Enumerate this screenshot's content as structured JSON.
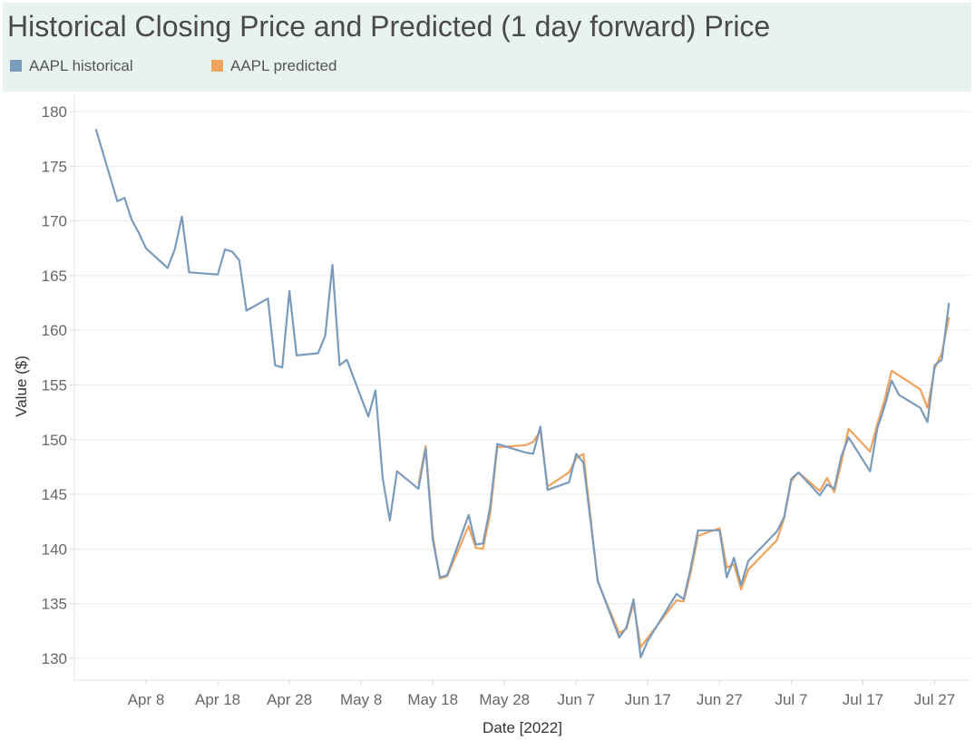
{
  "chart_data": {
    "type": "line",
    "title": "Historical Closing Price and Predicted (1 day forward) Price",
    "xlabel": "Date [2022]",
    "ylabel": "Value ($)",
    "ylim": [
      128,
      181
    ],
    "yticks": [
      130,
      135,
      140,
      145,
      150,
      155,
      160,
      165,
      170,
      175,
      180
    ],
    "xticks": [
      {
        "date": "2022-04-08",
        "label": "Apr 8"
      },
      {
        "date": "2022-04-18",
        "label": "Apr 18"
      },
      {
        "date": "2022-04-28",
        "label": "Apr 28"
      },
      {
        "date": "2022-05-08",
        "label": "May 8"
      },
      {
        "date": "2022-05-18",
        "label": "May 18"
      },
      {
        "date": "2022-05-28",
        "label": "May 28"
      },
      {
        "date": "2022-06-07",
        "label": "Jun 7"
      },
      {
        "date": "2022-06-17",
        "label": "Jun 17"
      },
      {
        "date": "2022-06-27",
        "label": "Jun 27"
      },
      {
        "date": "2022-07-07",
        "label": "Jul 7"
      },
      {
        "date": "2022-07-17",
        "label": "Jul 17"
      },
      {
        "date": "2022-07-27",
        "label": "Jul 27"
      }
    ],
    "xrange": [
      "2022-03-29",
      "2022-08-01"
    ],
    "grid": true,
    "legend_position": "top-left",
    "series": [
      {
        "name": "AAPL historical",
        "color": "#7a9bbb",
        "points": [
          [
            "2022-04-01",
            178.4
          ],
          [
            "2022-04-04",
            171.8
          ],
          [
            "2022-04-05",
            172.1
          ],
          [
            "2022-04-06",
            170.1
          ],
          [
            "2022-04-07",
            168.9
          ],
          [
            "2022-04-08",
            167.5
          ],
          [
            "2022-04-11",
            165.7
          ],
          [
            "2022-04-12",
            167.4
          ],
          [
            "2022-04-13",
            170.4
          ],
          [
            "2022-04-14",
            165.3
          ],
          [
            "2022-04-18",
            165.1
          ],
          [
            "2022-04-19",
            167.4
          ],
          [
            "2022-04-20",
            167.2
          ],
          [
            "2022-04-21",
            166.4
          ],
          [
            "2022-04-22",
            161.8
          ],
          [
            "2022-04-25",
            162.9
          ],
          [
            "2022-04-26",
            156.8
          ],
          [
            "2022-04-27",
            156.6
          ],
          [
            "2022-04-28",
            163.6
          ],
          [
            "2022-04-29",
            157.7
          ],
          [
            "2022-05-02",
            157.9
          ],
          [
            "2022-05-03",
            159.5
          ],
          [
            "2022-05-04",
            166.0
          ],
          [
            "2022-05-05",
            156.8
          ],
          [
            "2022-05-06",
            157.3
          ],
          [
            "2022-05-09",
            152.1
          ],
          [
            "2022-05-10",
            154.5
          ],
          [
            "2022-05-11",
            146.5
          ],
          [
            "2022-05-12",
            142.6
          ],
          [
            "2022-05-13",
            147.1
          ],
          [
            "2022-05-16",
            145.5
          ],
          [
            "2022-05-17",
            149.2
          ],
          [
            "2022-05-18",
            140.8
          ],
          [
            "2022-05-19",
            137.4
          ],
          [
            "2022-05-20",
            137.6
          ],
          [
            "2022-05-23",
            143.1
          ],
          [
            "2022-05-24",
            140.4
          ],
          [
            "2022-05-25",
            140.5
          ],
          [
            "2022-05-26",
            143.8
          ],
          [
            "2022-05-27",
            149.6
          ],
          [
            "2022-05-31",
            148.8
          ],
          [
            "2022-06-01",
            148.7
          ],
          [
            "2022-06-02",
            151.2
          ],
          [
            "2022-06-03",
            145.4
          ],
          [
            "2022-06-06",
            146.1
          ],
          [
            "2022-06-07",
            148.7
          ],
          [
            "2022-06-08",
            147.9
          ],
          [
            "2022-06-09",
            142.6
          ],
          [
            "2022-06-10",
            137.1
          ],
          [
            "2022-06-13",
            131.9
          ],
          [
            "2022-06-14",
            132.8
          ],
          [
            "2022-06-15",
            135.4
          ],
          [
            "2022-06-16",
            130.1
          ],
          [
            "2022-06-17",
            131.6
          ],
          [
            "2022-06-21",
            135.9
          ],
          [
            "2022-06-22",
            135.4
          ],
          [
            "2022-06-23",
            138.3
          ],
          [
            "2022-06-24",
            141.7
          ],
          [
            "2022-06-27",
            141.7
          ],
          [
            "2022-06-28",
            137.4
          ],
          [
            "2022-06-29",
            139.2
          ],
          [
            "2022-06-30",
            136.7
          ],
          [
            "2022-07-01",
            138.9
          ],
          [
            "2022-07-05",
            141.6
          ],
          [
            "2022-07-06",
            142.9
          ],
          [
            "2022-07-07",
            146.4
          ],
          [
            "2022-07-08",
            147.0
          ],
          [
            "2022-07-11",
            144.9
          ],
          [
            "2022-07-12",
            145.9
          ],
          [
            "2022-07-13",
            145.5
          ],
          [
            "2022-07-14",
            148.5
          ],
          [
            "2022-07-15",
            150.2
          ],
          [
            "2022-07-18",
            147.1
          ],
          [
            "2022-07-19",
            151.0
          ],
          [
            "2022-07-20",
            153.0
          ],
          [
            "2022-07-21",
            155.4
          ],
          [
            "2022-07-22",
            154.1
          ],
          [
            "2022-07-25",
            152.9
          ],
          [
            "2022-07-26",
            151.6
          ],
          [
            "2022-07-27",
            156.8
          ],
          [
            "2022-07-28",
            157.3
          ],
          [
            "2022-07-29",
            162.5
          ]
        ]
      },
      {
        "name": "AAPL predicted",
        "color": "#f0a35e",
        "points": [
          [
            "2022-05-16",
            145.9
          ],
          [
            "2022-05-17",
            149.4
          ],
          [
            "2022-05-18",
            141.2
          ],
          [
            "2022-05-19",
            137.3
          ],
          [
            "2022-05-20",
            137.5
          ],
          [
            "2022-05-23",
            142.1
          ],
          [
            "2022-05-24",
            140.1
          ],
          [
            "2022-05-25",
            140.0
          ],
          [
            "2022-05-26",
            143.2
          ],
          [
            "2022-05-27",
            149.3
          ],
          [
            "2022-05-31",
            149.5
          ],
          [
            "2022-06-01",
            149.8
          ],
          [
            "2022-06-02",
            150.8
          ],
          [
            "2022-06-03",
            145.7
          ],
          [
            "2022-06-06",
            147.0
          ],
          [
            "2022-06-07",
            148.3
          ],
          [
            "2022-06-08",
            148.7
          ],
          [
            "2022-06-09",
            142.9
          ],
          [
            "2022-06-10",
            137.0
          ],
          [
            "2022-06-13",
            132.3
          ],
          [
            "2022-06-14",
            132.7
          ],
          [
            "2022-06-15",
            135.0
          ],
          [
            "2022-06-16",
            131.0
          ],
          [
            "2022-06-17",
            131.9
          ],
          [
            "2022-06-21",
            135.3
          ],
          [
            "2022-06-22",
            135.2
          ],
          [
            "2022-06-23",
            137.9
          ],
          [
            "2022-06-24",
            141.2
          ],
          [
            "2022-06-27",
            141.9
          ],
          [
            "2022-06-28",
            138.3
          ],
          [
            "2022-06-29",
            138.6
          ],
          [
            "2022-06-30",
            136.3
          ],
          [
            "2022-07-01",
            138.1
          ],
          [
            "2022-07-05",
            140.8
          ],
          [
            "2022-07-06",
            142.8
          ],
          [
            "2022-07-07",
            146.2
          ],
          [
            "2022-07-08",
            147.0
          ],
          [
            "2022-07-11",
            145.3
          ],
          [
            "2022-07-12",
            146.5
          ],
          [
            "2022-07-13",
            145.2
          ],
          [
            "2022-07-14",
            147.9
          ],
          [
            "2022-07-15",
            151.0
          ],
          [
            "2022-07-18",
            148.9
          ],
          [
            "2022-07-19",
            151.4
          ],
          [
            "2022-07-20",
            153.6
          ],
          [
            "2022-07-21",
            156.3
          ],
          [
            "2022-07-25",
            154.6
          ],
          [
            "2022-07-26",
            152.9
          ],
          [
            "2022-07-27",
            156.5
          ],
          [
            "2022-07-28",
            157.9
          ],
          [
            "2022-07-29",
            161.2
          ]
        ]
      }
    ]
  }
}
